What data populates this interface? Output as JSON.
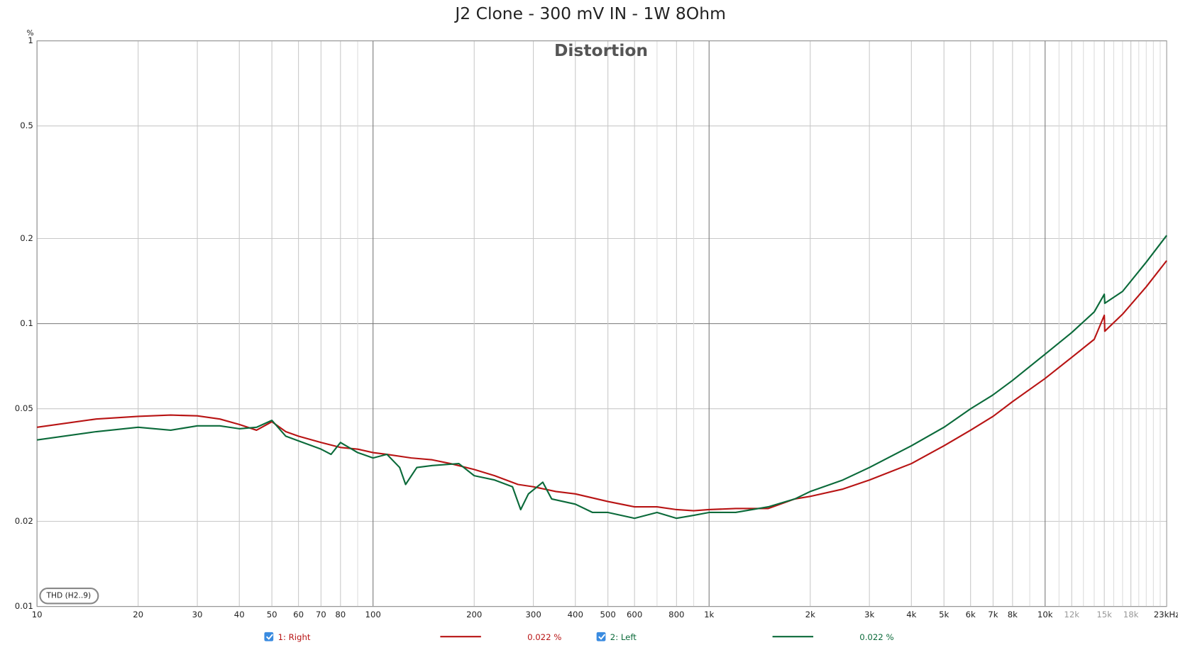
{
  "chart_data": {
    "type": "line",
    "title": "J2 Clone - 300 mV IN - 1W 8Ohm",
    "subtitle": "Distortion",
    "y_label": "%",
    "button": "THD (H2..9)",
    "xscale": "log",
    "yscale": "log",
    "grid": true,
    "xlim": [
      10,
      23000
    ],
    "ylim": [
      0.01,
      1
    ],
    "xticks": [
      10,
      20,
      30,
      40,
      50,
      60,
      70,
      80,
      100,
      200,
      300,
      400,
      500,
      600,
      800,
      {
        "value": 1000,
        "label": "1k"
      },
      {
        "value": 2000,
        "label": "2k"
      },
      {
        "value": 3000,
        "label": "3k"
      },
      {
        "value": 4000,
        "label": "4k"
      },
      {
        "value": 5000,
        "label": "5k"
      },
      {
        "value": 6000,
        "label": "6k"
      },
      {
        "value": 7000,
        "label": "7k"
      },
      {
        "value": 8000,
        "label": "8k"
      },
      {
        "value": 10000,
        "label": "10k"
      },
      {
        "value": 12000,
        "label": "12k"
      },
      {
        "value": 15000,
        "label": "15k"
      },
      {
        "value": 18000,
        "label": "18k"
      },
      {
        "value": 23000,
        "label": "23kHz"
      }
    ],
    "xgrid_minor": [
      90,
      700,
      900,
      9000,
      11000,
      13000,
      14000,
      16000,
      17000,
      19000,
      20000,
      21000,
      22000
    ],
    "yticks": [
      0.01,
      0.02,
      0.05,
      0.1,
      0.2,
      0.5,
      1
    ],
    "series": [
      {
        "name": "1: Right",
        "color": "#b81414",
        "cursor_value": 0.022,
        "cursor_label": "0.022 %",
        "x": [
          10,
          15,
          20,
          25,
          30,
          35,
          40,
          45,
          50,
          55,
          60,
          70,
          80,
          90,
          100,
          110,
          130,
          150,
          170,
          200,
          230,
          270,
          300,
          350,
          400,
          500,
          600,
          700,
          800,
          900,
          1000,
          1200,
          1500,
          1800,
          2000,
          2500,
          3000,
          4000,
          5000,
          6000,
          7000,
          8000,
          10000,
          12000,
          14000,
          15000,
          15050,
          17000,
          20000,
          23000
        ],
        "values": [
          0.043,
          0.046,
          0.047,
          0.0475,
          0.0472,
          0.046,
          0.044,
          0.042,
          0.045,
          0.0415,
          0.04,
          0.038,
          0.0365,
          0.036,
          0.035,
          0.0345,
          0.0335,
          0.033,
          0.032,
          0.0305,
          0.029,
          0.027,
          0.0265,
          0.0255,
          0.025,
          0.0235,
          0.0225,
          0.0225,
          0.022,
          0.0218,
          0.022,
          0.0222,
          0.0222,
          0.024,
          0.0245,
          0.026,
          0.028,
          0.032,
          0.037,
          0.042,
          0.047,
          0.053,
          0.064,
          0.076,
          0.088,
          0.107,
          0.094,
          0.108,
          0.135,
          0.167
        ]
      },
      {
        "name": "2: Left",
        "color": "#0b6a3a",
        "cursor_value": 0.022,
        "cursor_label": "0.022 %",
        "x": [
          10,
          15,
          20,
          25,
          30,
          35,
          40,
          45,
          50,
          55,
          60,
          70,
          75,
          80,
          90,
          100,
          110,
          120,
          125,
          135,
          150,
          180,
          200,
          230,
          260,
          275,
          290,
          320,
          340,
          400,
          450,
          500,
          600,
          700,
          800,
          900,
          1000,
          1200,
          1500,
          1800,
          2000,
          2500,
          3000,
          4000,
          5000,
          6000,
          7000,
          8000,
          10000,
          12000,
          14000,
          15000,
          15050,
          17000,
          20000,
          23000
        ],
        "values": [
          0.0388,
          0.0415,
          0.043,
          0.042,
          0.0435,
          0.0435,
          0.0425,
          0.043,
          0.0455,
          0.04,
          0.0385,
          0.036,
          0.0345,
          0.038,
          0.035,
          0.0335,
          0.0345,
          0.031,
          0.027,
          0.031,
          0.0315,
          0.032,
          0.029,
          0.028,
          0.0265,
          0.022,
          0.025,
          0.0275,
          0.024,
          0.023,
          0.0215,
          0.0215,
          0.0205,
          0.0215,
          0.0205,
          0.021,
          0.0215,
          0.0215,
          0.0225,
          0.024,
          0.0255,
          0.028,
          0.031,
          0.037,
          0.043,
          0.05,
          0.056,
          0.063,
          0.078,
          0.093,
          0.11,
          0.127,
          0.118,
          0.13,
          0.165,
          0.205
        ]
      }
    ]
  }
}
